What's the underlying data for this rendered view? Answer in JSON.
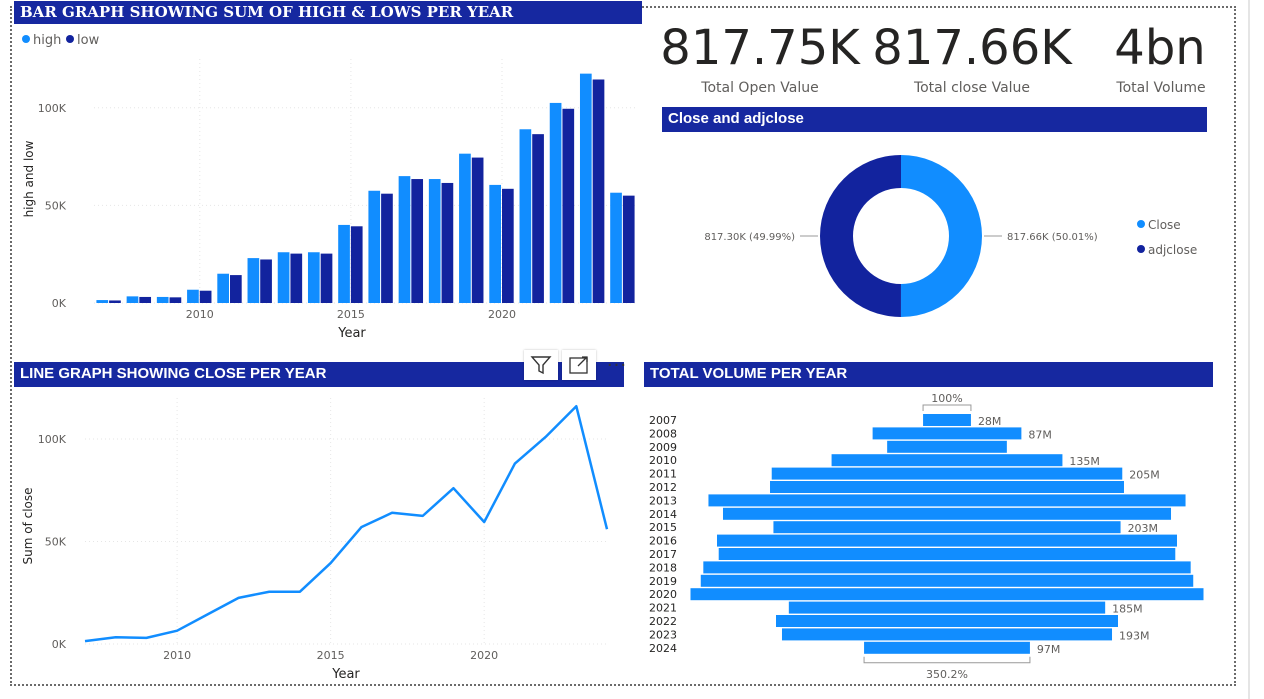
{
  "kpis": [
    {
      "value": "817.75K",
      "label": "Total Open Value"
    },
    {
      "value": "817.66K",
      "label": "Total close Value"
    },
    {
      "value": "4bn",
      "label": "Total Volume"
    }
  ],
  "colors": {
    "high": "#118dff",
    "low": "#12239e",
    "title_bar": "#1628a0",
    "line": "#118dff"
  },
  "toolbar": {
    "icons": [
      "filter-icon",
      "focus-mode-icon",
      "more-options-icon"
    ],
    "more_label": "···"
  },
  "chart_data": [
    {
      "id": "bar",
      "type": "bar",
      "title": "BAR GRAPH SHOWING SUM OF HIGH & LOWS PER YEAR",
      "xlabel": "Year",
      "ylabel": "high and low",
      "legend_position": "top-left",
      "x": [
        2007,
        2008,
        2009,
        2010,
        2011,
        2012,
        2013,
        2014,
        2015,
        2016,
        2017,
        2018,
        2019,
        2020,
        2021,
        2022,
        2023,
        2024
      ],
      "series": [
        {
          "name": "high",
          "values": [
            1500,
            3400,
            3100,
            6800,
            15000,
            23000,
            26000,
            26000,
            40000,
            57500,
            65000,
            63500,
            76500,
            60500,
            89000,
            102500,
            117500,
            56500
          ]
        },
        {
          "name": "low",
          "values": [
            1300,
            3100,
            2900,
            6300,
            14300,
            22300,
            25300,
            25300,
            39300,
            56000,
            63500,
            61500,
            74500,
            58500,
            86500,
            99500,
            114500,
            55000
          ]
        }
      ],
      "ylim": [
        0,
        125000
      ],
      "xlim": [
        2006.5,
        2024.5
      ],
      "yticks": [
        0,
        50000,
        100000
      ],
      "ytick_labels": [
        "0K",
        "50K",
        "100K"
      ],
      "xticks": [
        2010,
        2015,
        2020
      ],
      "xtick_labels": [
        "2010",
        "2015",
        "2020"
      ],
      "grid": true
    },
    {
      "id": "donut",
      "type": "pie",
      "title": "Close and adjclose",
      "legend_position": "right",
      "categories": [
        "Close",
        "adjclose"
      ],
      "values": [
        817660,
        817300
      ],
      "data_labels": [
        "817.66K (50.01%)",
        "817.30K (49.99%)"
      ]
    },
    {
      "id": "line",
      "type": "line",
      "title": "LINE GRAPH SHOWING CLOSE PER YEAR",
      "xlabel": "Year",
      "ylabel": "Sum of close",
      "x": [
        2007,
        2008,
        2009,
        2010,
        2011,
        2012,
        2013,
        2014,
        2015,
        2016,
        2017,
        2018,
        2019,
        2020,
        2021,
        2022,
        2023,
        2024
      ],
      "series": [
        {
          "name": "close",
          "values": [
            1400,
            3300,
            3000,
            6500,
            14500,
            22500,
            25500,
            25500,
            39500,
            57000,
            64000,
            62500,
            76000,
            59500,
            88000,
            101000,
            116000,
            56000
          ]
        }
      ],
      "ylim": [
        0,
        120000
      ],
      "xlim": [
        2007,
        2024
      ],
      "yticks": [
        0,
        50000,
        100000
      ],
      "ytick_labels": [
        "0K",
        "50K",
        "100K"
      ],
      "xticks": [
        2010,
        2015,
        2020
      ],
      "xtick_labels": [
        "2010",
        "2015",
        "2020"
      ],
      "grid": true
    },
    {
      "id": "funnel",
      "type": "bar",
      "orientation": "horizontal-funnel",
      "title": "TOTAL VOLUME PER YEAR",
      "categories": [
        "2007",
        "2008",
        "2009",
        "2010",
        "2011",
        "2012",
        "2013",
        "2014",
        "2015",
        "2016",
        "2017",
        "2018",
        "2019",
        "2020",
        "2021",
        "2022",
        "2023",
        "2024"
      ],
      "values": [
        28,
        87,
        70,
        135,
        205,
        207,
        279,
        262,
        203,
        269,
        267,
        285,
        288,
        300,
        185,
        200,
        193,
        97
      ],
      "units": "M",
      "data_labels": [
        "28M",
        "87M",
        "",
        "135M",
        "205M",
        "",
        "",
        "",
        "203M",
        "",
        "",
        "",
        "",
        "",
        "185M",
        "",
        "193M",
        "97M"
      ],
      "top_percent_label": "100%",
      "bottom_percent_label": "350.2%"
    }
  ]
}
